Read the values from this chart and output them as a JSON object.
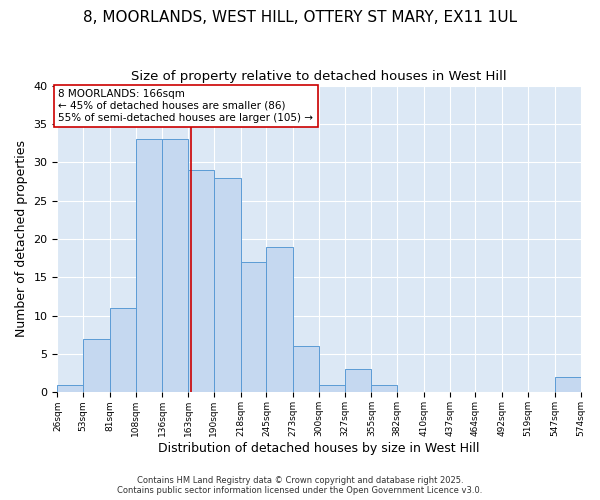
{
  "title": "8, MOORLANDS, WEST HILL, OTTERY ST MARY, EX11 1UL",
  "subtitle": "Size of property relative to detached houses in West Hill",
  "xlabel": "Distribution of detached houses by size in West Hill",
  "ylabel": "Number of detached properties",
  "bin_edges": [
    26,
    53,
    81,
    108,
    136,
    163,
    190,
    218,
    245,
    273,
    300,
    327,
    355,
    382,
    410,
    437,
    464,
    492,
    519,
    547,
    574
  ],
  "counts": [
    1,
    7,
    11,
    33,
    33,
    29,
    28,
    17,
    19,
    6,
    1,
    3,
    1,
    0,
    0,
    0,
    0,
    0,
    0,
    2
  ],
  "bar_color": "#c5d8f0",
  "bar_edge_color": "#5b9bd5",
  "property_size": 166,
  "red_line_color": "#cc0000",
  "annotation_text": "8 MOORLANDS: 166sqm\n← 45% of detached houses are smaller (86)\n55% of semi-detached houses are larger (105) →",
  "annotation_box_color": "#ffffff",
  "annotation_box_edge": "#cc0000",
  "ylim": [
    0,
    40
  ],
  "yticks": [
    0,
    5,
    10,
    15,
    20,
    25,
    30,
    35,
    40
  ],
  "background_color": "#dce8f5",
  "footer_line1": "Contains HM Land Registry data © Crown copyright and database right 2025.",
  "footer_line2": "Contains public sector information licensed under the Open Government Licence v3.0.",
  "title_fontsize": 11,
  "subtitle_fontsize": 9.5
}
